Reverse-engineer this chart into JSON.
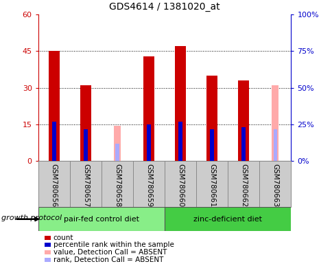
{
  "title": "GDS4614 / 1381020_at",
  "samples": [
    "GSM780656",
    "GSM780657",
    "GSM780658",
    "GSM780659",
    "GSM780660",
    "GSM780661",
    "GSM780662",
    "GSM780663"
  ],
  "count_values": [
    45,
    31,
    null,
    43,
    47,
    35,
    33,
    null
  ],
  "count_color": "#cc0000",
  "rank_values": [
    16,
    13,
    null,
    15,
    16,
    13,
    14,
    13
  ],
  "rank_color": "#0000cc",
  "absent_value_values": [
    null,
    null,
    14.5,
    null,
    null,
    null,
    null,
    31
  ],
  "absent_rank_values": [
    null,
    null,
    7,
    null,
    null,
    null,
    null,
    13
  ],
  "absent_value_color": "#ffaaaa",
  "absent_rank_color": "#aaaaff",
  "ylim_left": [
    0,
    60
  ],
  "ylim_right": [
    0,
    100
  ],
  "yticks_left": [
    0,
    15,
    30,
    45,
    60
  ],
  "ytick_labels_left": [
    "0",
    "15",
    "30",
    "45",
    "60"
  ],
  "yticks_right": [
    0,
    25,
    50,
    75,
    100
  ],
  "ytick_labels_right": [
    "0%",
    "25%",
    "50%",
    "75%",
    "100%"
  ],
  "groups": [
    {
      "label": "pair-fed control diet",
      "start": 0,
      "end": 4,
      "color": "#88ee88"
    },
    {
      "label": "zinc-deficient diet",
      "start": 4,
      "end": 8,
      "color": "#44cc44"
    }
  ],
  "group_label_prefix": "growth protocol",
  "legend_items": [
    {
      "label": "count",
      "color": "#cc0000"
    },
    {
      "label": "percentile rank within the sample",
      "color": "#0000cc"
    },
    {
      "label": "value, Detection Call = ABSENT",
      "color": "#ffaaaa"
    },
    {
      "label": "rank, Detection Call = ABSENT",
      "color": "#aaaaff"
    }
  ],
  "bar_width": 0.35,
  "rank_bar_width": 0.12,
  "absent_bar_width": 0.22,
  "left_tick_color": "#cc0000",
  "right_tick_color": "#0000cc",
  "sample_area_color": "#cccccc"
}
